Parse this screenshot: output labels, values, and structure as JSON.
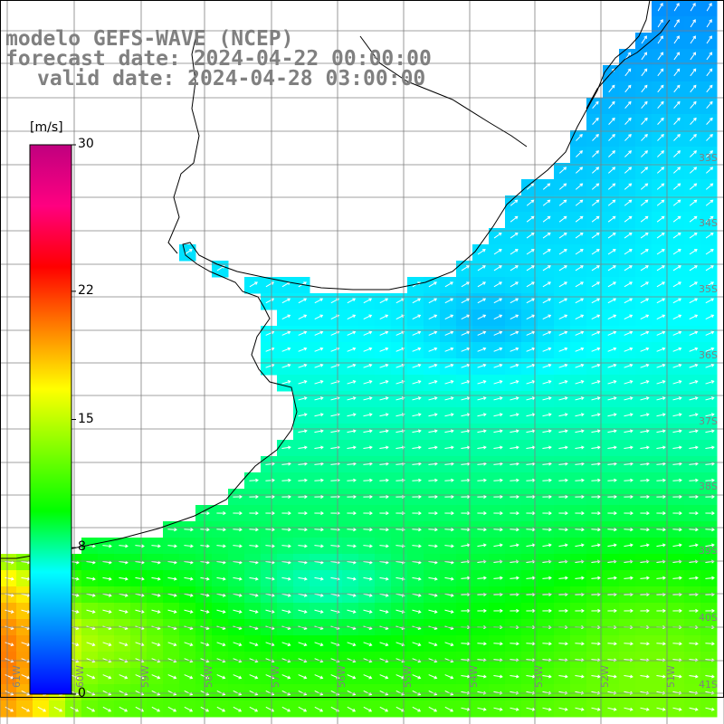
{
  "title": {
    "line1": "modelo GEFS-WAVE (NCEP)",
    "line2": "forecast date: 2024-04-22 00:00:00",
    "line3": "valid date: 2024-04-28 03:00:00"
  },
  "colorbar": {
    "unit": "[m/s]",
    "min": 0,
    "max": 30,
    "ticks": [
      {
        "value": 0,
        "label": "0"
      },
      {
        "value": 8,
        "label": "8"
      },
      {
        "value": 15,
        "label": "15"
      },
      {
        "value": 22,
        "label": "22"
      },
      {
        "value": 30,
        "label": "30"
      }
    ],
    "colors": [
      "#0000ff",
      "#0080ff",
      "#00ffff",
      "#00ff00",
      "#80ff00",
      "#ffff00",
      "#ff8000",
      "#ff0000",
      "#ff0080",
      "#c0007f"
    ]
  },
  "latitude_labels": [
    "33S",
    "34S",
    "35S",
    "36S",
    "37S",
    "38S",
    "39S",
    "40S",
    "41S"
  ],
  "longitude_labels": [
    "61W",
    "60W",
    "59W",
    "58W",
    "57W",
    "56W",
    "55W",
    "54W",
    "53W",
    "52W",
    "51W"
  ],
  "colors": {
    "coast": "#000000",
    "grid": "#808080",
    "arrow": "#ffffff",
    "label": "#808080"
  }
}
